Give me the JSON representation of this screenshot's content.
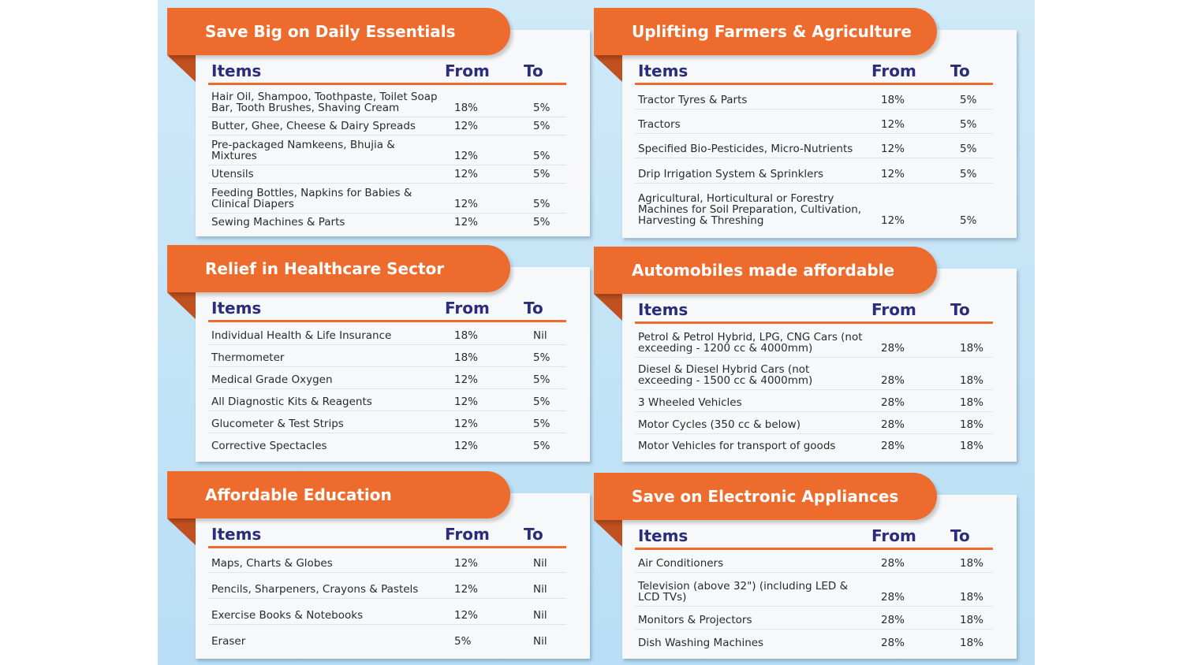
{
  "colors": {
    "accent": "#ee6b2e",
    "header": "#2b2d7c",
    "background": "#c3e3f6"
  },
  "columns": {
    "items": "Items",
    "from": "From",
    "to": "To"
  },
  "sections": [
    {
      "title": "Save Big on Daily Essentials",
      "rows": [
        {
          "item": "Hair Oil, Shampoo, Toothpaste, Toilet Soap Bar, Tooth Brushes, Shaving Cream",
          "from": "18%",
          "to": "5%"
        },
        {
          "item": "Butter, Ghee, Cheese & Dairy Spreads",
          "from": "12%",
          "to": "5%"
        },
        {
          "item": "Pre-packaged Namkeens, Bhujia & Mixtures",
          "from": "12%",
          "to": "5%"
        },
        {
          "item": "Utensils",
          "from": "12%",
          "to": "5%"
        },
        {
          "item": "Feeding Bottles, Napkins for Babies & Clinical Diapers",
          "from": "12%",
          "to": "5%"
        },
        {
          "item": "Sewing Machines & Parts",
          "from": "12%",
          "to": "5%"
        }
      ]
    },
    {
      "title": "Uplifting Farmers & Agriculture",
      "rows": [
        {
          "item": "Tractor Tyres & Parts",
          "from": "18%",
          "to": "5%"
        },
        {
          "item": "Tractors",
          "from": "12%",
          "to": "5%"
        },
        {
          "item": "Specified Bio-Pesticides, Micro-Nutrients",
          "from": "12%",
          "to": "5%"
        },
        {
          "item": "Drip Irrigation System & Sprinklers",
          "from": "12%",
          "to": "5%"
        },
        {
          "item": "Agricultural, Horticultural or Forestry Machines for Soil Preparation, Cultivation, Harvesting & Threshing",
          "from": "12%",
          "to": "5%"
        }
      ]
    },
    {
      "title": "Relief in Healthcare Sector",
      "rows": [
        {
          "item": "Individual Health & Life Insurance",
          "from": "18%",
          "to": "Nil"
        },
        {
          "item": "Thermometer",
          "from": "18%",
          "to": "5%"
        },
        {
          "item": "Medical Grade Oxygen",
          "from": "12%",
          "to": "5%"
        },
        {
          "item": "All Diagnostic Kits & Reagents",
          "from": "12%",
          "to": "5%"
        },
        {
          "item": "Glucometer & Test Strips",
          "from": "12%",
          "to": "5%"
        },
        {
          "item": "Corrective Spectacles",
          "from": "12%",
          "to": "5%"
        }
      ]
    },
    {
      "title": "Automobiles made affordable",
      "rows": [
        {
          "item": "Petrol & Petrol Hybrid, LPG, CNG Cars (not exceeding - 1200 cc & 4000mm)",
          "from": "28%",
          "to": "18%"
        },
        {
          "item": "Diesel & Diesel Hybrid Cars (not exceeding - 1500 cc & 4000mm)",
          "from": "28%",
          "to": "18%"
        },
        {
          "item": "3 Wheeled Vehicles",
          "from": "28%",
          "to": "18%"
        },
        {
          "item": "Motor Cycles (350 cc & below)",
          "from": "28%",
          "to": "18%"
        },
        {
          "item": "Motor Vehicles for transport of goods",
          "from": "28%",
          "to": "18%"
        }
      ]
    },
    {
      "title": "Affordable Education",
      "rows": [
        {
          "item": "Maps, Charts & Globes",
          "from": "12%",
          "to": "Nil"
        },
        {
          "item": "Pencils, Sharpeners, Crayons & Pastels",
          "from": "12%",
          "to": "Nil"
        },
        {
          "item": "Exercise Books & Notebooks",
          "from": "12%",
          "to": "Nil"
        },
        {
          "item": "Eraser",
          "from": "5%",
          "to": "Nil"
        }
      ]
    },
    {
      "title": "Save on Electronic Appliances",
      "rows": [
        {
          "item": "Air Conditioners",
          "from": "28%",
          "to": "18%"
        },
        {
          "item": "Television (above 32\") (including LED & LCD TVs)",
          "from": "28%",
          "to": "18%"
        },
        {
          "item": "Monitors & Projectors",
          "from": "28%",
          "to": "18%"
        },
        {
          "item": "Dish Washing Machines",
          "from": "28%",
          "to": "18%"
        }
      ]
    }
  ]
}
